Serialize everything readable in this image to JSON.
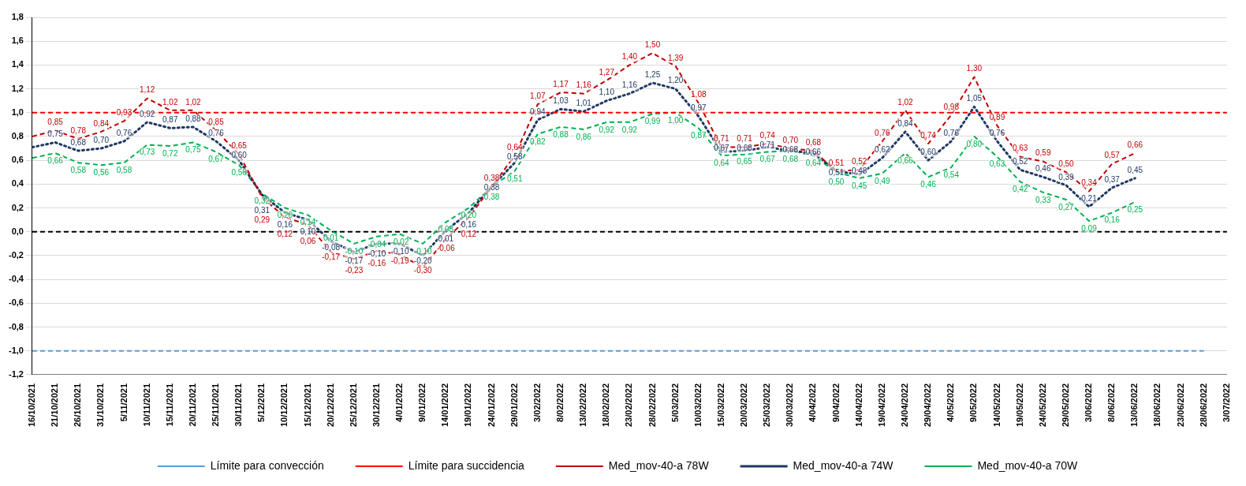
{
  "chart_data": {
    "type": "line",
    "categories": [
      "16/10/2021",
      "21/10/2021",
      "26/10/2021",
      "31/10/2021",
      "5/11/2021",
      "10/11/2021",
      "15/11/2021",
      "20/11/2021",
      "25/11/2021",
      "30/11/2021",
      "5/12/2021",
      "10/12/2021",
      "15/12/2021",
      "20/12/2021",
      "25/12/2021",
      "30/12/2021",
      "4/01/2022",
      "9/01/2022",
      "14/01/2022",
      "19/01/2022",
      "24/01/2022",
      "29/01/2022",
      "3/02/2022",
      "8/02/2022",
      "13/02/2022",
      "18/02/2022",
      "23/02/2022",
      "28/02/2022",
      "5/03/2022",
      "10/03/2022",
      "15/03/2022",
      "20/03/2022",
      "25/03/2022",
      "30/03/2022",
      "4/04/2022",
      "9/04/2022",
      "14/04/2022",
      "19/04/2022",
      "24/04/2022",
      "29/04/2022",
      "4/05/2022",
      "9/05/2022",
      "14/05/2022",
      "19/05/2022",
      "24/05/2022",
      "29/05/2022",
      "3/06/2022",
      "8/06/2022",
      "13/06/2022",
      "18/06/2022",
      "23/06/2022",
      "28/06/2022",
      "3/07/2022"
    ],
    "series": [
      {
        "name": "Límite para convección",
        "color": "#5b9bd5",
        "line_style": "dashed",
        "values": [
          -1,
          -1,
          -1,
          -1,
          -1,
          -1,
          -1,
          -1,
          -1,
          -1,
          -1,
          -1,
          -1,
          -1,
          -1,
          -1,
          -1,
          -1,
          -1,
          -1,
          -1,
          -1,
          -1,
          -1,
          -1,
          -1,
          -1,
          -1,
          -1,
          -1,
          -1,
          -1,
          -1,
          -1,
          -1,
          -1,
          -1,
          -1,
          -1,
          -1,
          -1,
          -1,
          -1,
          -1,
          -1,
          -1,
          -1,
          -1,
          -1,
          -1,
          -1,
          -1,
          null
        ]
      },
      {
        "name": "Límite para succidencia",
        "color": "#ff0000",
        "line_style": "dashed",
        "values": [
          1,
          1,
          1,
          1,
          1,
          1,
          1,
          1,
          1,
          1,
          1,
          1,
          1,
          1,
          1,
          1,
          1,
          1,
          1,
          1,
          1,
          1,
          1,
          1,
          1,
          1,
          1,
          1,
          1,
          1,
          1,
          1,
          1,
          1,
          1,
          1,
          1,
          1,
          1,
          1,
          1,
          1,
          1,
          1,
          1,
          1,
          1,
          1,
          1,
          1,
          1,
          1,
          1
        ]
      },
      {
        "name": "Med_mov-40-a 78W",
        "color": "#c00000",
        "line_style": "dashed",
        "values": [
          0.8,
          0.85,
          0.78,
          0.84,
          0.93,
          1.12,
          1.02,
          1.02,
          0.85,
          0.65,
          0.29,
          0.12,
          0.06,
          -0.17,
          -0.23,
          -0.16,
          -0.19,
          -0.3,
          -0.06,
          0.12,
          0.38,
          0.64,
          1.07,
          1.17,
          1.16,
          1.27,
          1.4,
          1.5,
          1.39,
          1.08,
          0.71,
          0.71,
          0.74,
          0.7,
          0.68,
          0.51,
          0.52,
          0.76,
          1.02,
          0.74,
          0.98,
          1.3,
          0.89,
          0.63,
          0.59,
          0.5,
          0.34,
          0.57,
          0.66,
          null,
          null,
          null,
          null
        ],
        "value_labels": [
          null,
          "0,85",
          "0,78",
          "0,84",
          "0,93",
          "1,12",
          "1,02",
          "1,02",
          "0,85",
          "0,65",
          "0,29",
          "0,12",
          "0,06",
          "-0,17",
          "-0,23",
          "-0,16",
          "-0,19",
          "-0,30",
          "-0,06",
          "0,12",
          "0,38",
          "0,64",
          "1,07",
          "1,17",
          "1,16",
          "1,27",
          "1,40",
          "1,50",
          "1,39",
          "1,08",
          "0,71",
          "0,71",
          "0,74",
          "0,70",
          "0,68",
          "0,51",
          "0,52",
          "0,76",
          "1,02",
          "0,74",
          "0,98",
          "1,30",
          "0,89",
          "0,63",
          "0,59",
          "0,50",
          "0,34",
          "0,57",
          "0,66",
          null,
          null,
          null,
          null
        ]
      },
      {
        "name": "Med_mov-40-a 74W",
        "color": "#1f3864",
        "line_style": "dotted",
        "values": [
          0.71,
          0.75,
          0.68,
          0.7,
          0.76,
          0.92,
          0.87,
          0.88,
          0.76,
          0.6,
          0.31,
          0.16,
          0.1,
          -0.08,
          -0.17,
          -0.1,
          -0.1,
          -0.2,
          0.01,
          0.16,
          0.38,
          0.58,
          0.94,
          1.03,
          1.01,
          1.1,
          1.16,
          1.25,
          1.2,
          0.97,
          0.67,
          0.68,
          0.71,
          0.68,
          0.66,
          0.51,
          0.48,
          0.62,
          0.84,
          0.6,
          0.76,
          1.05,
          0.76,
          0.52,
          0.46,
          0.39,
          0.21,
          0.37,
          0.45,
          null,
          null,
          null,
          null
        ],
        "value_labels": [
          null,
          "0,75",
          "0,68",
          "0,70",
          "0,76",
          "0,92",
          "0,87",
          "0,88",
          "0,76",
          "0,60",
          "0,31",
          "0,16",
          "0,10",
          "-0,08",
          "-0,17",
          "-0,10",
          "-0,10",
          "-0,20",
          "0,01",
          "0,16",
          "0,38",
          "0,58",
          "0,94",
          "1,03",
          "1,01",
          "1,10",
          "1,16",
          "1,25",
          "1,20",
          "0,97",
          "0,67",
          "0,68",
          "0,71",
          "0,68",
          "0,66",
          "0,51",
          "0,48",
          "0,62",
          "0,84",
          "0,60",
          "0,76",
          "1,05",
          "0,76",
          "0,52",
          "0,46",
          "0,39",
          "0,21",
          "0,37",
          "0,45",
          null,
          null,
          null,
          null
        ]
      },
      {
        "name": "Med_mov-40-a 70W",
        "color": "#00b050",
        "line_style": "dashed",
        "values": [
          0.62,
          0.66,
          0.58,
          0.56,
          0.58,
          0.73,
          0.72,
          0.75,
          0.67,
          0.56,
          0.32,
          0.2,
          0.14,
          0.01,
          -0.1,
          -0.04,
          -0.02,
          -0.1,
          0.08,
          0.2,
          0.38,
          0.51,
          0.82,
          0.88,
          0.86,
          0.92,
          0.92,
          0.99,
          1.0,
          0.87,
          0.64,
          0.65,
          0.67,
          0.68,
          0.64,
          0.5,
          0.45,
          0.49,
          0.66,
          0.46,
          0.54,
          0.8,
          0.63,
          0.42,
          0.33,
          0.27,
          0.09,
          0.16,
          0.25,
          null,
          null,
          null,
          null
        ],
        "value_labels": [
          null,
          "0,66",
          "0,58",
          "0,56",
          "0,58",
          "0,73",
          "0,72",
          "0,75",
          "0,67",
          "0,56",
          "0,32",
          "0,20",
          "0,14",
          "0,01",
          "-0,10",
          "-0,04",
          "-0,02",
          "-0,10",
          "0,08",
          "0,20",
          "0,38",
          "0,51",
          "0,82",
          "0,88",
          "0,86",
          "0,92",
          "0,92",
          "0,99",
          "1,00",
          "0,87",
          "0,64",
          "0,65",
          "0,67",
          "0,68",
          "0,64",
          "0,50",
          "0,45",
          "0,49",
          "0,66",
          "0,46",
          "0,54",
          "0,80",
          "0,63",
          "0,42",
          "0,33",
          "0,27",
          "0,09",
          "0,16",
          "0,25",
          null,
          null,
          null,
          null
        ]
      }
    ],
    "ylim": [
      -1.2,
      1.8
    ],
    "yticks": [
      {
        "value": -1.2,
        "label": "-1,2"
      },
      {
        "value": -1,
        "label": "-1,0"
      },
      {
        "value": -0.8,
        "label": "-0,8"
      },
      {
        "value": -0.6,
        "label": "-0,6"
      },
      {
        "value": -0.4,
        "label": "-0,4"
      },
      {
        "value": -0.2,
        "label": "-0,2"
      },
      {
        "value": 0,
        "label": "0,0"
      },
      {
        "value": 0.2,
        "label": "0,2"
      },
      {
        "value": 0.4,
        "label": "0,4"
      },
      {
        "value": 0.6,
        "label": "0,6"
      },
      {
        "value": 0.8,
        "label": "0,8"
      },
      {
        "value": 1,
        "label": "1,0"
      },
      {
        "value": 1.2,
        "label": "1,2"
      },
      {
        "value": 1.4,
        "label": "1,4"
      },
      {
        "value": 1.6,
        "label": "1,6"
      },
      {
        "value": 1.8,
        "label": "1,8"
      }
    ],
    "ref_lines": [
      {
        "axis": "y",
        "value": 0,
        "color": "#000000",
        "line_style": "dashed"
      }
    ],
    "grid": "y",
    "legend": "bottom",
    "marker": "none"
  }
}
